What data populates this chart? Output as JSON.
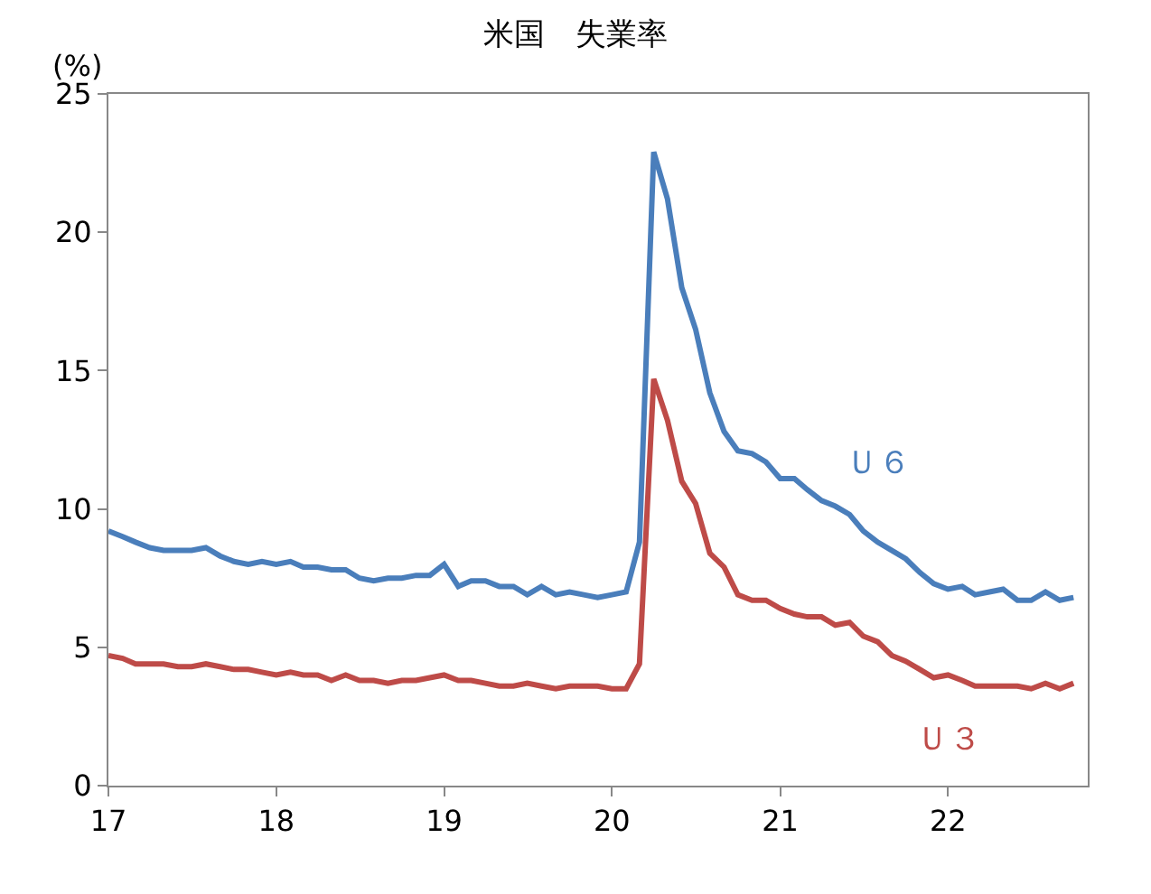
{
  "chart_data": {
    "type": "line",
    "title": "米国　失業率",
    "ylabel": "(%)",
    "x": [
      "2017-01",
      "2017-02",
      "2017-03",
      "2017-04",
      "2017-05",
      "2017-06",
      "2017-07",
      "2017-08",
      "2017-09",
      "2017-10",
      "2017-11",
      "2017-12",
      "2018-01",
      "2018-02",
      "2018-03",
      "2018-04",
      "2018-05",
      "2018-06",
      "2018-07",
      "2018-08",
      "2018-09",
      "2018-10",
      "2018-11",
      "2018-12",
      "2019-01",
      "2019-02",
      "2019-03",
      "2019-04",
      "2019-05",
      "2019-06",
      "2019-07",
      "2019-08",
      "2019-09",
      "2019-10",
      "2019-11",
      "2019-12",
      "2020-01",
      "2020-02",
      "2020-03",
      "2020-04",
      "2020-05",
      "2020-06",
      "2020-07",
      "2020-08",
      "2020-09",
      "2020-10",
      "2020-11",
      "2020-12",
      "2021-01",
      "2021-02",
      "2021-03",
      "2021-04",
      "2021-05",
      "2021-06",
      "2021-07",
      "2021-08",
      "2021-09",
      "2021-10",
      "2021-11",
      "2021-12",
      "2022-01",
      "2022-02",
      "2022-03",
      "2022-04",
      "2022-05",
      "2022-06",
      "2022-07",
      "2022-08",
      "2022-09",
      "2022-10"
    ],
    "series": [
      {
        "name": "Ｕ６",
        "color": "#4a7ebb",
        "values": [
          9.2,
          9.0,
          8.8,
          8.6,
          8.5,
          8.5,
          8.5,
          8.6,
          8.3,
          8.1,
          8.0,
          8.1,
          8.0,
          8.1,
          7.9,
          7.9,
          7.8,
          7.8,
          7.5,
          7.4,
          7.5,
          7.5,
          7.6,
          7.6,
          8.0,
          7.2,
          7.4,
          7.4,
          7.2,
          7.2,
          6.9,
          7.2,
          6.9,
          7.0,
          6.9,
          6.8,
          6.9,
          7.0,
          8.8,
          22.9,
          21.2,
          18.0,
          16.5,
          14.2,
          12.8,
          12.1,
          12.0,
          11.7,
          11.1,
          11.1,
          10.7,
          10.3,
          10.1,
          9.8,
          9.2,
          8.8,
          8.5,
          8.2,
          7.7,
          7.3,
          7.1,
          7.2,
          6.9,
          7.0,
          7.1,
          6.7,
          6.7,
          7.0,
          6.7,
          6.8
        ]
      },
      {
        "name": "Ｕ３",
        "color": "#be4b48",
        "values": [
          4.7,
          4.6,
          4.4,
          4.4,
          4.4,
          4.3,
          4.3,
          4.4,
          4.3,
          4.2,
          4.2,
          4.1,
          4.0,
          4.1,
          4.0,
          4.0,
          3.8,
          4.0,
          3.8,
          3.8,
          3.7,
          3.8,
          3.8,
          3.9,
          4.0,
          3.8,
          3.8,
          3.7,
          3.6,
          3.6,
          3.7,
          3.6,
          3.5,
          3.6,
          3.6,
          3.6,
          3.5,
          3.5,
          4.4,
          14.7,
          13.2,
          11.0,
          10.2,
          8.4,
          7.9,
          6.9,
          6.7,
          6.7,
          6.4,
          6.2,
          6.1,
          6.1,
          5.8,
          5.9,
          5.4,
          5.2,
          4.7,
          4.5,
          4.2,
          3.9,
          4.0,
          3.8,
          3.6,
          3.6,
          3.6,
          3.6,
          3.5,
          3.7,
          3.5,
          3.7
        ]
      }
    ],
    "xlim": [
      "2017-01",
      "2022-11"
    ],
    "xticks": [
      {
        "value": "2017-01",
        "label": "17"
      },
      {
        "value": "2018-01",
        "label": "18"
      },
      {
        "value": "2019-01",
        "label": "19"
      },
      {
        "value": "2020-01",
        "label": "20"
      },
      {
        "value": "2021-01",
        "label": "21"
      },
      {
        "value": "2022-01",
        "label": "22"
      }
    ],
    "ylim": [
      0,
      25
    ],
    "yticks": [
      0,
      5,
      10,
      15,
      20,
      25
    ],
    "legend": false,
    "line_style": "solid",
    "marker": "none"
  }
}
